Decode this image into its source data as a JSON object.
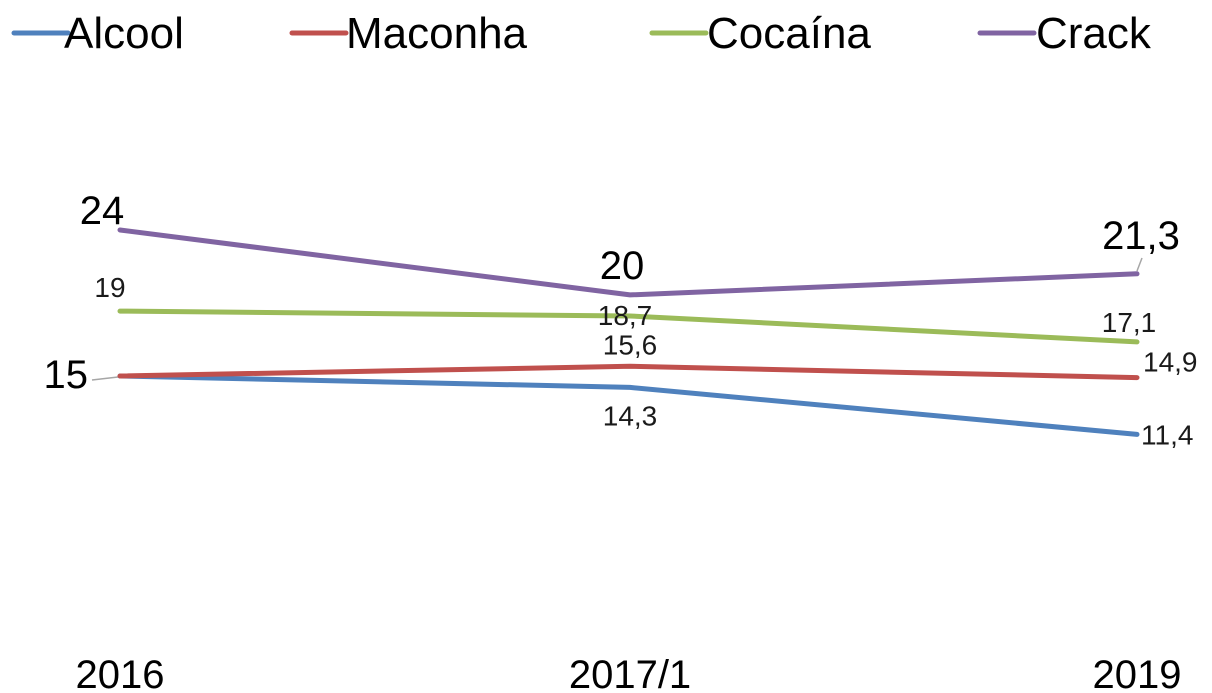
{
  "chart_data": {
    "type": "line",
    "categories": [
      "2016",
      "2017/1",
      "2019"
    ],
    "series": [
      {
        "name": "Alcool",
        "color": "#4f81bd",
        "values": [
          15,
          14.3,
          11.4
        ],
        "labels": [
          "15",
          "14,3",
          "11,4"
        ]
      },
      {
        "name": "Maconha",
        "color": "#c0504d",
        "values": [
          15,
          15.6,
          14.9
        ],
        "labels": [
          "",
          "15,6",
          "14,9"
        ]
      },
      {
        "name": "Cocaína",
        "color": "#9bbb59",
        "values": [
          19,
          18.7,
          17.1
        ],
        "labels": [
          "19",
          "18,7",
          "17,1"
        ]
      },
      {
        "name": "Crack",
        "color": "#8064a2",
        "values": [
          24,
          20,
          21.3
        ],
        "labels": [
          "24",
          "20",
          "21,3"
        ]
      }
    ],
    "legend_position": "top",
    "grid": false,
    "y_axis_visible": false
  }
}
